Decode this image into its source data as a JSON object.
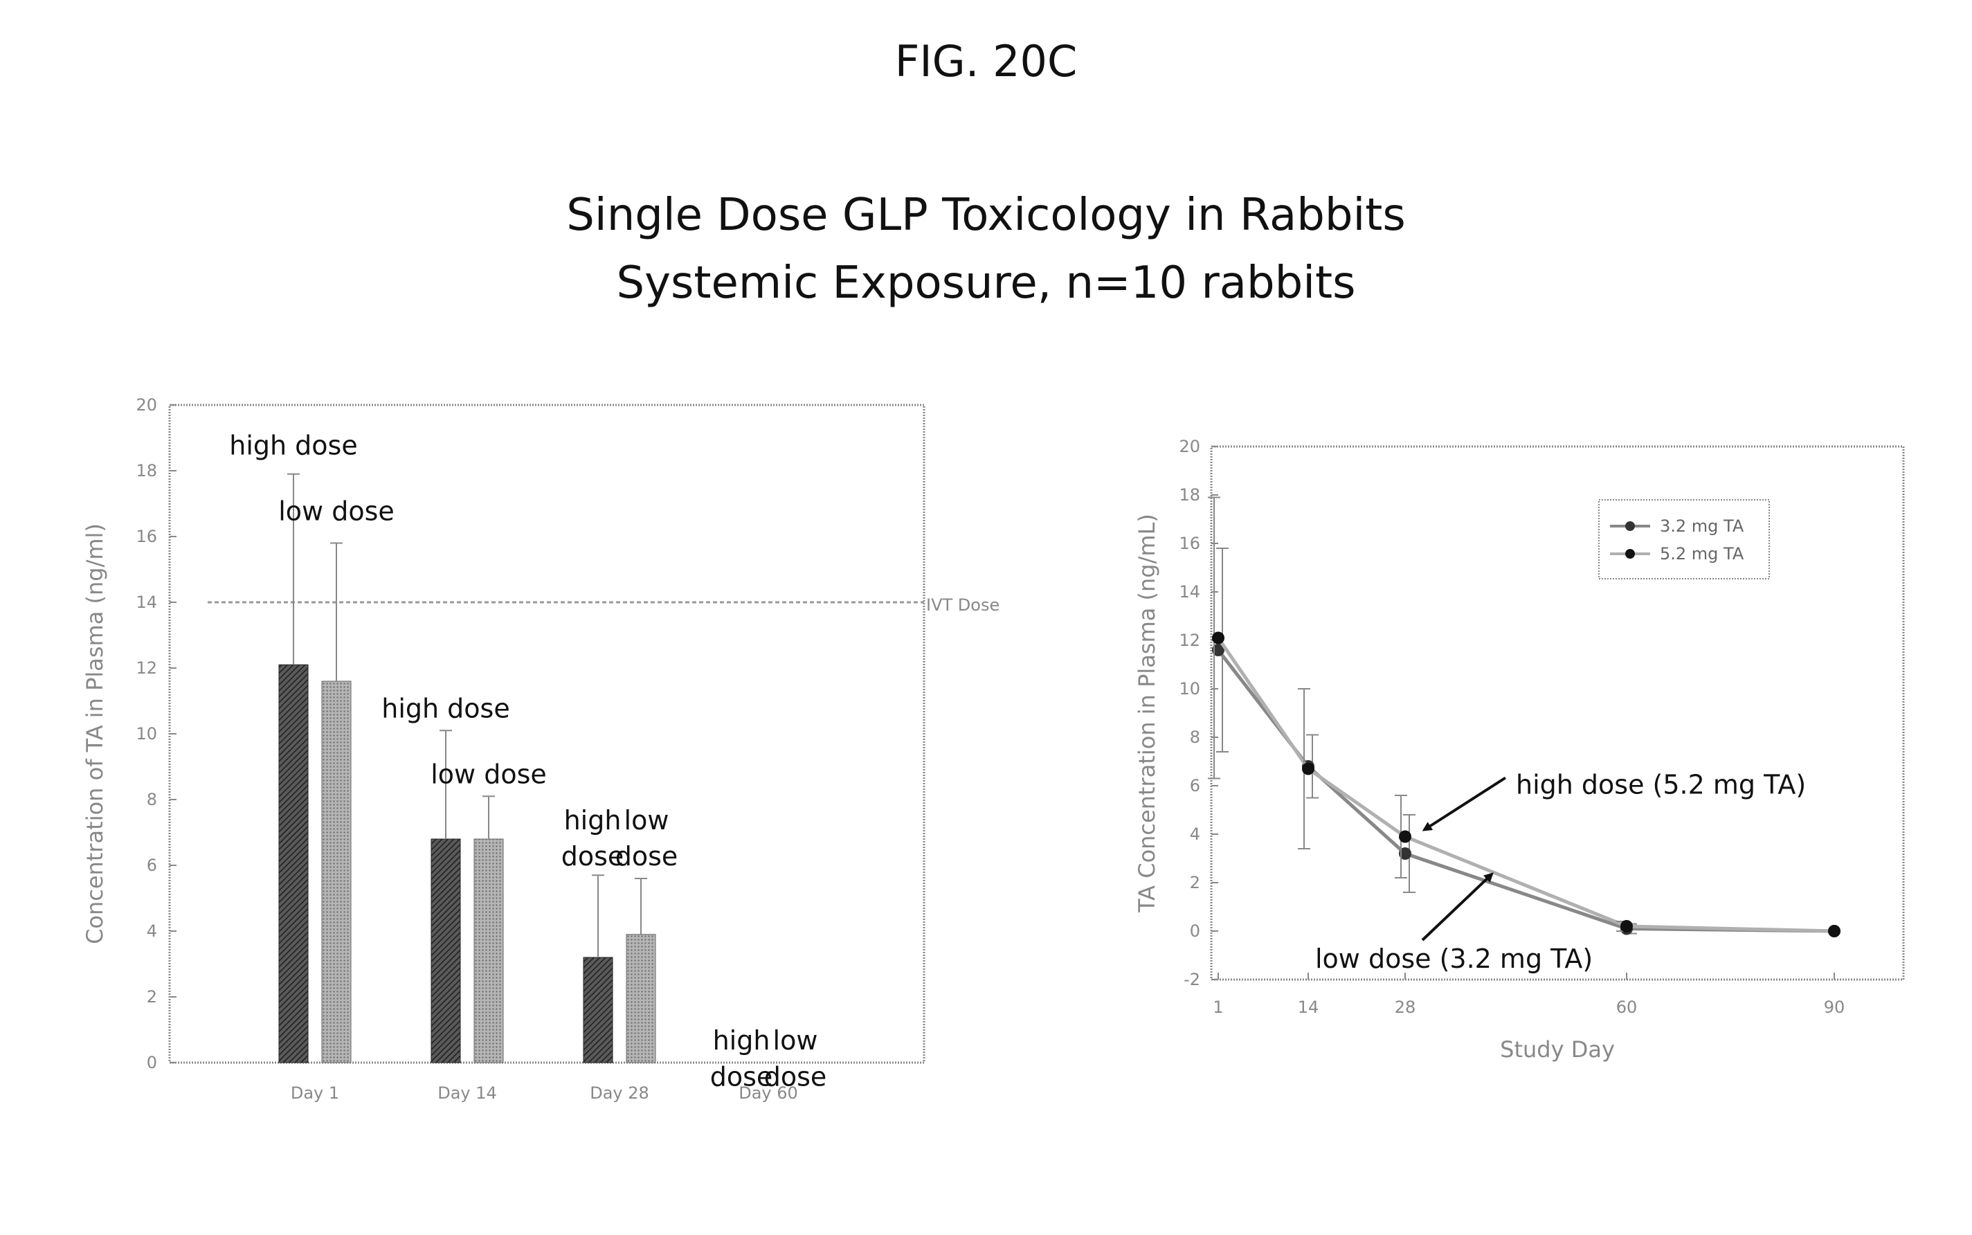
{
  "figure": {
    "label": "FIG. 20C",
    "title_line1": "Single Dose GLP Toxicology in Rabbits",
    "title_line2": "Systemic Exposure, n=10 rabbits"
  },
  "colors": {
    "high": "#3a3a3a",
    "low": "#8e8e8e",
    "ref": "#999999",
    "frame": "#888888"
  },
  "chart_data": [
    {
      "type": "bar",
      "title": "",
      "ylabel": "Concentration of TA in Plasma (ng/ml)",
      "xlabel": "",
      "ylim": [
        0,
        20
      ],
      "yticks": [
        "0",
        "2",
        "4",
        "6",
        "8",
        "10",
        "12",
        "14",
        "16",
        "18",
        "20"
      ],
      "categories": [
        "Day 1",
        "Day 14",
        "Day 28",
        "Day 60"
      ],
      "series": [
        {
          "key": "high",
          "values": [
            12.1,
            6.8,
            3.2,
            0
          ],
          "err": [
            5.8,
            3.3,
            2.5,
            0
          ]
        },
        {
          "key": "low",
          "values": [
            11.6,
            6.8,
            3.9,
            0
          ],
          "err": [
            4.2,
            1.3,
            1.7,
            0
          ]
        }
      ],
      "reference_line": {
        "value": 14,
        "label": "IVT Dose"
      },
      "annotations": [
        {
          "text": "high dose",
          "category": 0,
          "series": 0,
          "y": 18.5
        },
        {
          "text": "low dose",
          "category": 0,
          "series": 1,
          "y": 16.5
        },
        {
          "text": "high dose",
          "category": 1,
          "series": 0,
          "y": 10.5
        },
        {
          "text": "low dose",
          "category": 1,
          "series": 1,
          "y": 8.5
        },
        {
          "text": "high",
          "category": 2,
          "series": 0,
          "y": 7.1
        },
        {
          "text": "low",
          "category": 2,
          "series": 1,
          "y": 7.1
        },
        {
          "text": "dose",
          "category": 2,
          "series": 0,
          "y": 6.0
        },
        {
          "text": "dose",
          "category": 2,
          "series": 1,
          "y": 6.0
        },
        {
          "text": "high",
          "category": 3,
          "series": 0,
          "y": 0.4
        },
        {
          "text": "low",
          "category": 3,
          "series": 1,
          "y": 0.4
        },
        {
          "text": "dose",
          "category": 3,
          "series": 0,
          "y": -0.7
        },
        {
          "text": "dose",
          "category": 3,
          "series": 1,
          "y": -0.7
        }
      ]
    },
    {
      "type": "line",
      "title": "",
      "xlabel": "Study Day",
      "ylabel": "TA Concentration in Plasma (ng/mL)",
      "ylim": [
        -2,
        20
      ],
      "yticks": [
        "-2",
        "0",
        "2",
        "4",
        "6",
        "8",
        "10",
        "12",
        "14",
        "16",
        "18",
        "20"
      ],
      "xtick_values": [
        1,
        14,
        28,
        60,
        90
      ],
      "xticks": [
        "1",
        "14",
        "28",
        "60",
        "90"
      ],
      "xlim": [
        0,
        100
      ],
      "legend": [
        "3.2 mg TA",
        "5.2 mg TA"
      ],
      "legend_position": "top-right",
      "series": [
        {
          "name": "3.2 mg TA",
          "x": [
            1,
            14,
            28,
            60,
            90
          ],
          "y": [
            11.6,
            6.8,
            3.2,
            0.1,
            0
          ],
          "err": [
            4.2,
            1.3,
            1.6,
            0.2,
            0
          ]
        },
        {
          "name": "5.2 mg TA",
          "x": [
            1,
            14,
            28,
            60,
            90
          ],
          "y": [
            12.1,
            6.7,
            3.9,
            0.2,
            0
          ],
          "err": [
            5.8,
            3.3,
            1.7,
            0.2,
            0
          ]
        }
      ],
      "annotations": [
        {
          "text": "high dose (5.2 mg TA)",
          "x": 28,
          "y": 3.9
        },
        {
          "text": "low dose (3.2 mg TA)",
          "x": 28,
          "y": 3.2
        }
      ]
    }
  ]
}
